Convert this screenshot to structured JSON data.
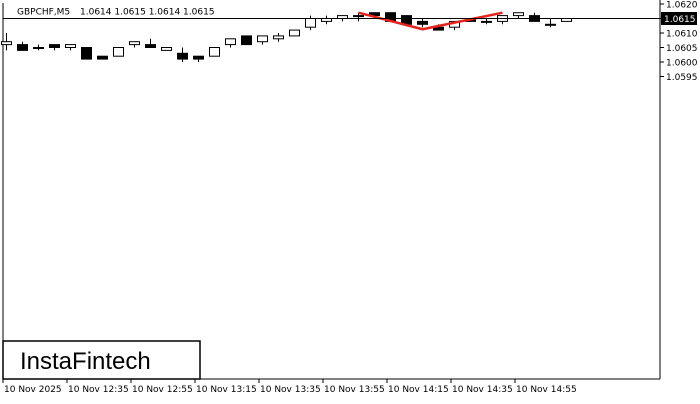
{
  "header": {
    "symbol": "GBPCHF,M5",
    "ohlc": "1.0614 1.0615 1.0614 1.0615"
  },
  "brand": {
    "name": "InstaFintech"
  },
  "current_price": {
    "label": "1.0615",
    "value": 1.0615
  },
  "colors": {
    "background": "#ffffff",
    "axis": "#000000",
    "bull_body": "#ffffff",
    "bear_body": "#000000",
    "pattern_line": "#e8211c",
    "price_label_bg": "#000000",
    "price_label_text": "#ffffff"
  },
  "chart_data": {
    "type": "candlestick",
    "title": "",
    "ylim": [
      1.0591,
      1.062
    ],
    "y_ticks": [
      "1.0620",
      "1.0615",
      "1.0610",
      "1.0605",
      "1.0600",
      "1.0595"
    ],
    "x_tick_labels": [
      "10 Nov 2025",
      "10 Nov 12:35",
      "10 Nov 12:55",
      "10 Nov 13:15",
      "10 Nov 13:35",
      "10 Nov 13:55",
      "10 Nov 14:15",
      "10 Nov 14:35",
      "10 Nov 14:55"
    ],
    "candles": [
      {
        "o": 1.0606,
        "h": 1.061,
        "l": 1.0604,
        "c": 1.0607
      },
      {
        "o": 1.0606,
        "h": 1.0607,
        "l": 1.0604,
        "c": 1.0604
      },
      {
        "o": 1.0605,
        "h": 1.0606,
        "l": 1.0604,
        "c": 1.0605
      },
      {
        "o": 1.0606,
        "h": 1.0606,
        "l": 1.0604,
        "c": 1.0605
      },
      {
        "o": 1.0605,
        "h": 1.0606,
        "l": 1.0604,
        "c": 1.0606
      },
      {
        "o": 1.0605,
        "h": 1.0605,
        "l": 1.0601,
        "c": 1.0601
      },
      {
        "o": 1.0602,
        "h": 1.0602,
        "l": 1.0601,
        "c": 1.0601
      },
      {
        "o": 1.0602,
        "h": 1.0605,
        "l": 1.0602,
        "c": 1.0605
      },
      {
        "o": 1.0606,
        "h": 1.0607,
        "l": 1.0605,
        "c": 1.0607
      },
      {
        "o": 1.0606,
        "h": 1.0608,
        "l": 1.0605,
        "c": 1.0605
      },
      {
        "o": 1.0604,
        "h": 1.0605,
        "l": 1.0604,
        "c": 1.0605
      },
      {
        "o": 1.0603,
        "h": 1.0605,
        "l": 1.06,
        "c": 1.0601
      },
      {
        "o": 1.0602,
        "h": 1.0602,
        "l": 1.06,
        "c": 1.0601
      },
      {
        "o": 1.0602,
        "h": 1.0605,
        "l": 1.0602,
        "c": 1.0605
      },
      {
        "o": 1.0606,
        "h": 1.0608,
        "l": 1.0605,
        "c": 1.0608
      },
      {
        "o": 1.0609,
        "h": 1.0609,
        "l": 1.0606,
        "c": 1.0606
      },
      {
        "o": 1.0607,
        "h": 1.0609,
        "l": 1.0606,
        "c": 1.0609
      },
      {
        "o": 1.0608,
        "h": 1.061,
        "l": 1.0607,
        "c": 1.0609
      },
      {
        "o": 1.0609,
        "h": 1.0611,
        "l": 1.0609,
        "c": 1.0611
      },
      {
        "o": 1.0612,
        "h": 1.0616,
        "l": 1.0611,
        "c": 1.0615
      },
      {
        "o": 1.0614,
        "h": 1.0616,
        "l": 1.0613,
        "c": 1.0615
      },
      {
        "o": 1.0615,
        "h": 1.0616,
        "l": 1.0614,
        "c": 1.0616
      },
      {
        "o": 1.0616,
        "h": 1.0617,
        "l": 1.0614,
        "c": 1.0616
      },
      {
        "o": 1.0617,
        "h": 1.0617,
        "l": 1.0616,
        "c": 1.0616
      },
      {
        "o": 1.0617,
        "h": 1.0617,
        "l": 1.0614,
        "c": 1.0614
      },
      {
        "o": 1.0616,
        "h": 1.0616,
        "l": 1.0613,
        "c": 1.0613
      },
      {
        "o": 1.0614,
        "h": 1.0615,
        "l": 1.0612,
        "c": 1.0613
      },
      {
        "o": 1.0612,
        "h": 1.0613,
        "l": 1.0611,
        "c": 1.0611
      },
      {
        "o": 1.0612,
        "h": 1.0614,
        "l": 1.0611,
        "c": 1.0614
      },
      {
        "o": 1.0615,
        "h": 1.0615,
        "l": 1.0614,
        "c": 1.0614
      },
      {
        "o": 1.0614,
        "h": 1.0615,
        "l": 1.0613,
        "c": 1.0614
      },
      {
        "o": 1.0614,
        "h": 1.0616,
        "l": 1.0613,
        "c": 1.0616
      },
      {
        "o": 1.0616,
        "h": 1.0617,
        "l": 1.0615,
        "c": 1.0617
      },
      {
        "o": 1.0616,
        "h": 1.0617,
        "l": 1.0614,
        "c": 1.0614
      },
      {
        "o": 1.0613,
        "h": 1.0615,
        "l": 1.0612,
        "c": 1.0613
      },
      {
        "o": 1.0614,
        "h": 1.0615,
        "l": 1.0614,
        "c": 1.0615
      }
    ],
    "pattern": {
      "name": "double-top",
      "points": [
        {
          "i": 22,
          "price": 1.0617
        },
        {
          "i": 26,
          "price": 1.06113
        },
        {
          "i": 31,
          "price": 1.0617
        }
      ]
    }
  }
}
